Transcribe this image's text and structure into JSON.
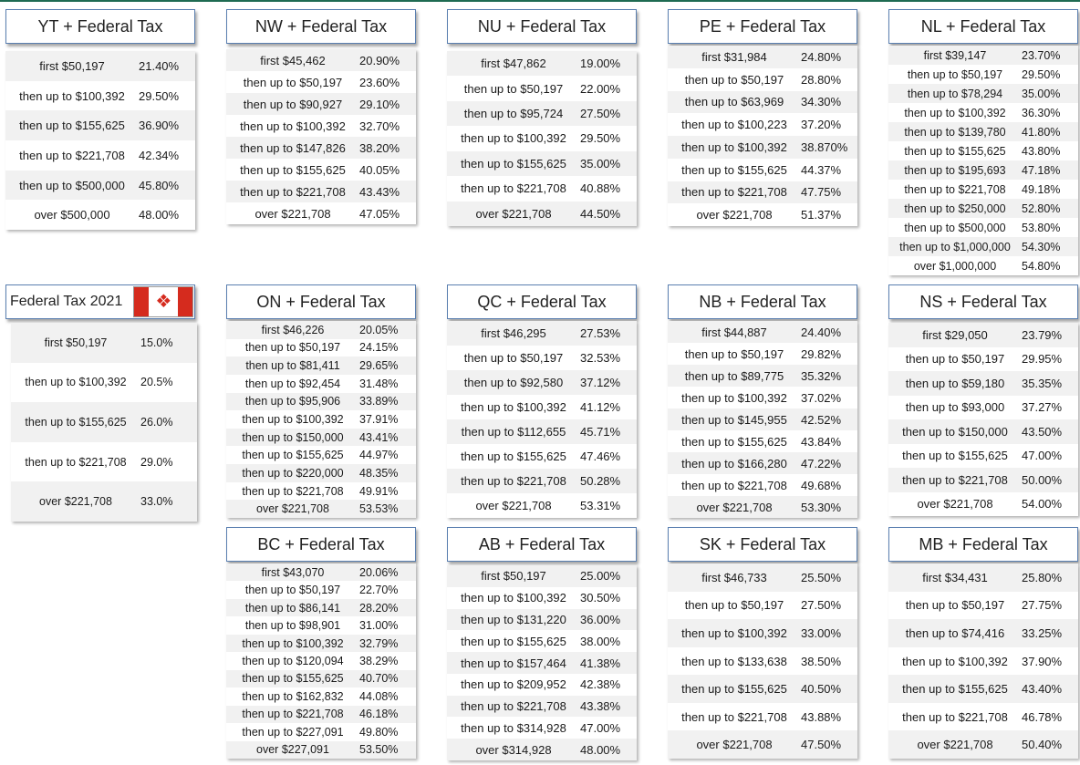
{
  "accent_color": "#1f6b52",
  "title_border_color": "#5a7fb0",
  "flag_icon": "canada-flag-icon",
  "tables": [
    {
      "id": "yt",
      "title": "YT + Federal Tax",
      "rows": [
        {
          "label": "first $50,197",
          "rate": "21.40%"
        },
        {
          "label": "then up to $100,392",
          "rate": "29.50%"
        },
        {
          "label": "then up to $155,625",
          "rate": "36.90%"
        },
        {
          "label": "then up to $221,708",
          "rate": "42.34%"
        },
        {
          "label": "then up to $500,000",
          "rate": "45.80%"
        },
        {
          "label": "over $500,000",
          "rate": "48.00%"
        }
      ]
    },
    {
      "id": "nw",
      "title": "NW + Federal Tax",
      "rows": [
        {
          "label": "first $45,462",
          "rate": "20.90%"
        },
        {
          "label": "then up to $50,197",
          "rate": "23.60%"
        },
        {
          "label": "then up to $90,927",
          "rate": "29.10%"
        },
        {
          "label": "then up to $100,392",
          "rate": "32.70%"
        },
        {
          "label": "then up to $147,826",
          "rate": "38.20%"
        },
        {
          "label": "then up to $155,625",
          "rate": "40.05%"
        },
        {
          "label": "then up to $221,708",
          "rate": "43.43%"
        },
        {
          "label": "over $221,708",
          "rate": "47.05%"
        }
      ]
    },
    {
      "id": "nu",
      "title": "NU + Federal Tax",
      "rows": [
        {
          "label": "first $47,862",
          "rate": "19.00%"
        },
        {
          "label": "then up to $50,197",
          "rate": "22.00%"
        },
        {
          "label": "then up to $95,724",
          "rate": "27.50%"
        },
        {
          "label": "then up to $100,392",
          "rate": "29.50%"
        },
        {
          "label": "then up to $155,625",
          "rate": "35.00%"
        },
        {
          "label": "then up to $221,708",
          "rate": "40.88%"
        },
        {
          "label": "over $221,708",
          "rate": "44.50%"
        }
      ]
    },
    {
      "id": "pe",
      "title": "PE + Federal Tax",
      "rows": [
        {
          "label": "first $31,984",
          "rate": "24.80%"
        },
        {
          "label": "then up to $50,197",
          "rate": "28.80%"
        },
        {
          "label": "then up to $63,969",
          "rate": "34.30%"
        },
        {
          "label": "then up to $100,223",
          "rate": "37.20%"
        },
        {
          "label": "then up to $100,392",
          "rate": "38.870%"
        },
        {
          "label": "then up to $155,625",
          "rate": "44.37%"
        },
        {
          "label": "then up to $221,708",
          "rate": "47.75%"
        },
        {
          "label": "over $221,708",
          "rate": "51.37%"
        }
      ]
    },
    {
      "id": "nl",
      "title": "NL + Federal Tax",
      "rows": [
        {
          "label": "first $39,147",
          "rate": "23.70%"
        },
        {
          "label": "then up to $50,197",
          "rate": "29.50%"
        },
        {
          "label": "then up to $78,294",
          "rate": "35.00%"
        },
        {
          "label": "then up to $100,392",
          "rate": "36.30%"
        },
        {
          "label": "then up to $139,780",
          "rate": "41.80%"
        },
        {
          "label": "then up to $155,625",
          "rate": "43.80%"
        },
        {
          "label": "then up to $195,693",
          "rate": "47.18%"
        },
        {
          "label": "then up to $221,708",
          "rate": "49.18%"
        },
        {
          "label": "then up to $250,000",
          "rate": "52.80%"
        },
        {
          "label": "then up to $500,000",
          "rate": "53.80%"
        },
        {
          "label": "then up to $1,000,000",
          "rate": "54.30%"
        },
        {
          "label": "over $1,000,000",
          "rate": "54.80%"
        }
      ]
    },
    {
      "id": "fed",
      "title": "Federal Tax 2021",
      "rows": [
        {
          "label": "first $50,197",
          "rate": "15.0%"
        },
        {
          "label": "then up to $100,392",
          "rate": "20.5%"
        },
        {
          "label": "then up to $155,625",
          "rate": "26.0%"
        },
        {
          "label": "then up to $221,708",
          "rate": "29.0%"
        },
        {
          "label": "over $221,708",
          "rate": "33.0%"
        }
      ]
    },
    {
      "id": "on",
      "title": "ON + Federal Tax",
      "rows": [
        {
          "label": "first $46,226",
          "rate": "20.05%"
        },
        {
          "label": "then up to $50,197",
          "rate": "24.15%"
        },
        {
          "label": "then up to $81,411",
          "rate": "29.65%"
        },
        {
          "label": "then up to $92,454",
          "rate": "31.48%"
        },
        {
          "label": "then up to $95,906",
          "rate": "33.89%"
        },
        {
          "label": "then up to $100,392",
          "rate": "37.91%"
        },
        {
          "label": "then up to $150,000",
          "rate": "43.41%"
        },
        {
          "label": "then up to $155,625",
          "rate": "44.97%"
        },
        {
          "label": "then up to $220,000",
          "rate": "48.35%"
        },
        {
          "label": "then up to $221,708",
          "rate": "49.91%"
        },
        {
          "label": "over $221,708",
          "rate": "53.53%"
        }
      ]
    },
    {
      "id": "qc",
      "title": "QC + Federal Tax",
      "rows": [
        {
          "label": "first $46,295",
          "rate": "27.53%"
        },
        {
          "label": "then up to $50,197",
          "rate": "32.53%"
        },
        {
          "label": "then up to $92,580",
          "rate": "37.12%"
        },
        {
          "label": "then up to $100,392",
          "rate": "41.12%"
        },
        {
          "label": "then up to $112,655",
          "rate": "45.71%"
        },
        {
          "label": "then up to $155,625",
          "rate": "47.46%"
        },
        {
          "label": "then up to $221,708",
          "rate": "50.28%"
        },
        {
          "label": "over $221,708",
          "rate": "53.31%"
        }
      ]
    },
    {
      "id": "nb",
      "title": "NB + Federal Tax",
      "rows": [
        {
          "label": "first $44,887",
          "rate": "24.40%"
        },
        {
          "label": "then up to $50,197",
          "rate": "29.82%"
        },
        {
          "label": "then up to $89,775",
          "rate": "35.32%"
        },
        {
          "label": "then up to $100,392",
          "rate": "37.02%"
        },
        {
          "label": "then up to $145,955",
          "rate": "42.52%"
        },
        {
          "label": "then up to $155,625",
          "rate": "43.84%"
        },
        {
          "label": "then up to $166,280",
          "rate": "47.22%"
        },
        {
          "label": "then up to $221,708",
          "rate": "49.68%"
        },
        {
          "label": "over $221,708",
          "rate": "53.30%"
        }
      ]
    },
    {
      "id": "ns",
      "title": "NS + Federal Tax",
      "rows": [
        {
          "label": "first $29,050",
          "rate": "23.79%"
        },
        {
          "label": "then up to $50,197",
          "rate": "29.95%"
        },
        {
          "label": "then up to $59,180",
          "rate": "35.35%"
        },
        {
          "label": "then up to $93,000",
          "rate": "37.27%"
        },
        {
          "label": "then up to $150,000",
          "rate": "43.50%"
        },
        {
          "label": "then up to $155,625",
          "rate": "47.00%"
        },
        {
          "label": "then up to $221,708",
          "rate": "50.00%"
        },
        {
          "label": "over $221,708",
          "rate": "54.00%"
        }
      ]
    },
    {
      "id": "bc",
      "title": "BC + Federal Tax",
      "rows": [
        {
          "label": "first $43,070",
          "rate": "20.06%"
        },
        {
          "label": "then up to $50,197",
          "rate": "22.70%"
        },
        {
          "label": "then up to $86,141",
          "rate": "28.20%"
        },
        {
          "label": "then up to $98,901",
          "rate": "31.00%"
        },
        {
          "label": "then up to $100,392",
          "rate": "32.79%"
        },
        {
          "label": "then up to $120,094",
          "rate": "38.29%"
        },
        {
          "label": "then up to $155,625",
          "rate": "40.70%"
        },
        {
          "label": "then up to $162,832",
          "rate": "44.08%"
        },
        {
          "label": "then up to $221,708",
          "rate": "46.18%"
        },
        {
          "label": "then up to $227,091",
          "rate": "49.80%"
        },
        {
          "label": "over $227,091",
          "rate": "53.50%"
        }
      ]
    },
    {
      "id": "ab",
      "title": "AB + Federal Tax",
      "rows": [
        {
          "label": "first $50,197",
          "rate": "25.00%"
        },
        {
          "label": "then up to $100,392",
          "rate": "30.50%"
        },
        {
          "label": "then up to $131,220",
          "rate": "36.00%"
        },
        {
          "label": "then up to $155,625",
          "rate": "38.00%"
        },
        {
          "label": "then up to $157,464",
          "rate": "41.38%"
        },
        {
          "label": "then up to $209,952",
          "rate": "42.38%"
        },
        {
          "label": "then up to $221,708",
          "rate": "43.38%"
        },
        {
          "label": "then up to $314,928",
          "rate": "47.00%"
        },
        {
          "label": "over $314,928",
          "rate": "48.00%"
        }
      ]
    },
    {
      "id": "sk",
      "title": "SK + Federal Tax",
      "rows": [
        {
          "label": "first $46,733",
          "rate": "25.50%"
        },
        {
          "label": "then up to $50,197",
          "rate": "27.50%"
        },
        {
          "label": "then up to $100,392",
          "rate": "33.00%"
        },
        {
          "label": "then up to $133,638",
          "rate": "38.50%"
        },
        {
          "label": "then up to $155,625",
          "rate": "40.50%"
        },
        {
          "label": "then up to $221,708",
          "rate": "43.88%"
        },
        {
          "label": "over $221,708",
          "rate": "47.50%"
        }
      ]
    },
    {
      "id": "mb",
      "title": "MB + Federal Tax",
      "rows": [
        {
          "label": "first $34,431",
          "rate": "25.80%"
        },
        {
          "label": "then up to $50,197",
          "rate": "27.75%"
        },
        {
          "label": "then up to $74,416",
          "rate": "33.25%"
        },
        {
          "label": "then up to $100,392",
          "rate": "37.90%"
        },
        {
          "label": "then up to $155,625",
          "rate": "43.40%"
        },
        {
          "label": "then up to $221,708",
          "rate": "46.78%"
        },
        {
          "label": "over $221,708",
          "rate": "50.40%"
        }
      ]
    }
  ]
}
